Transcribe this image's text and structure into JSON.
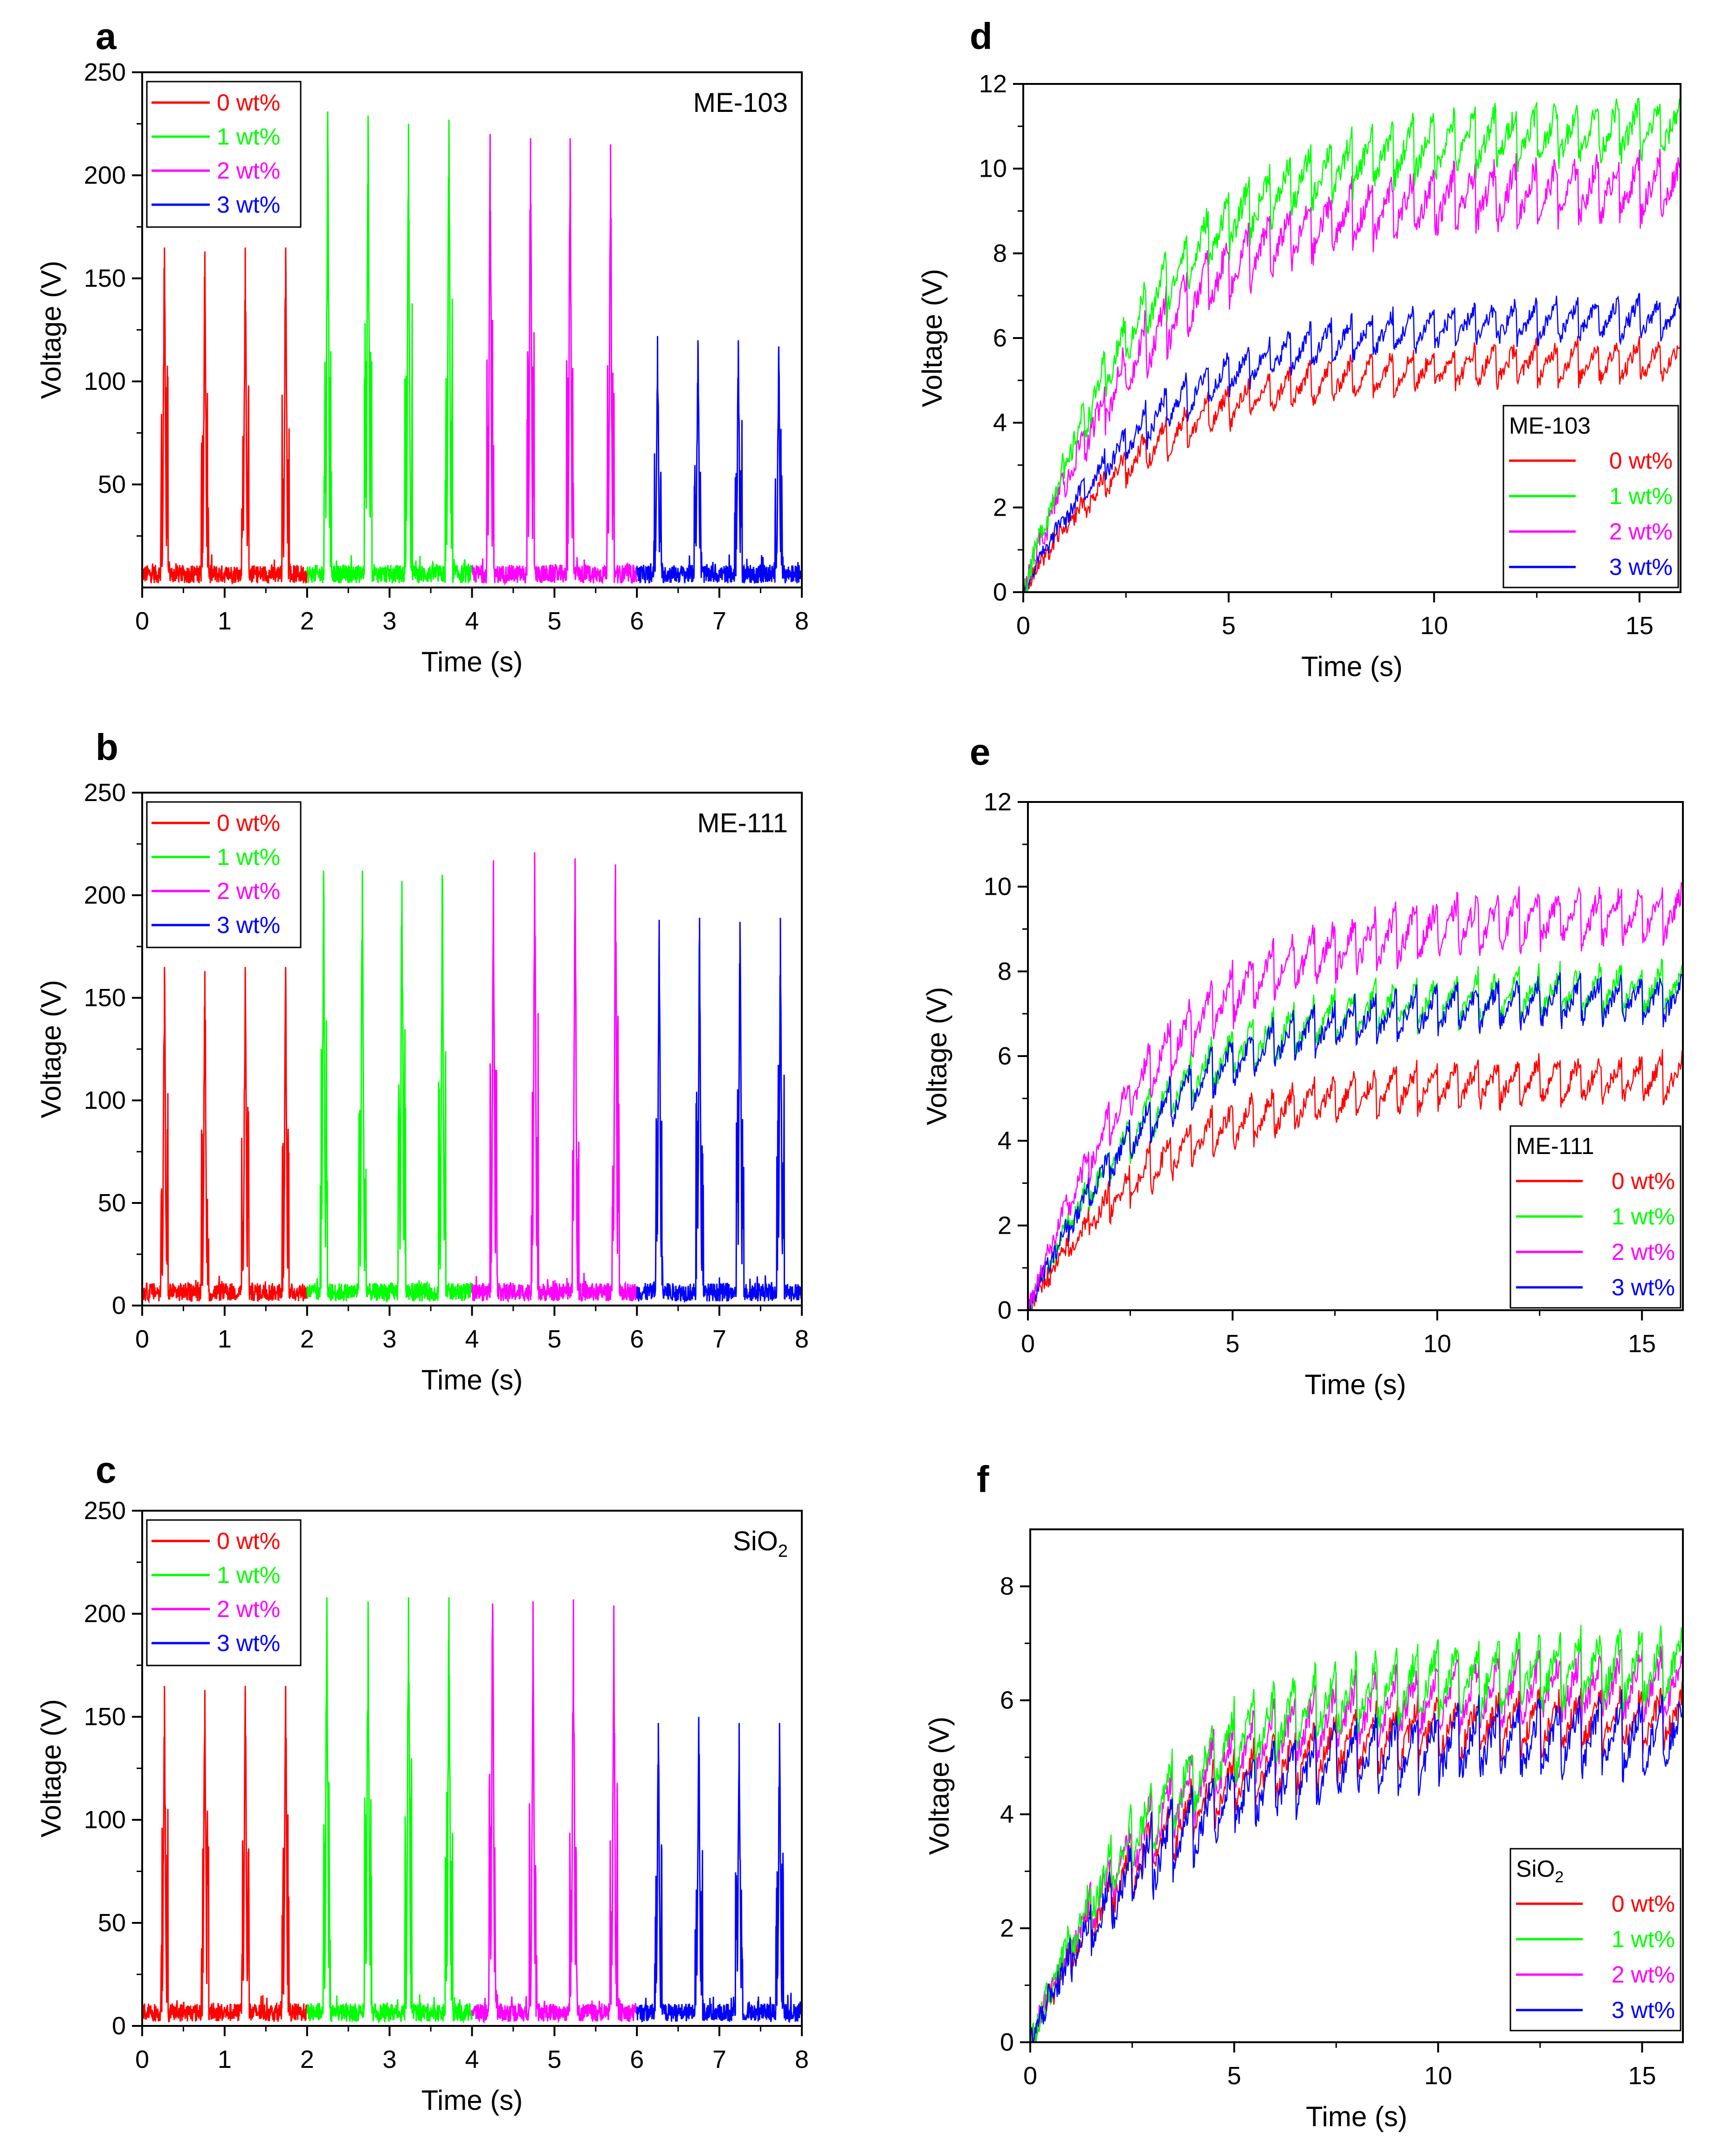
{
  "chart_data": [
    {
      "type": "line",
      "panel": "a",
      "annotation": "ME-103",
      "title": "",
      "xlabel": "Time (s)",
      "ylabel": "Voltage (V)",
      "xlim": [
        0,
        8
      ],
      "ylim": [
        0,
        250
      ],
      "xticks": [
        0,
        1,
        2,
        3,
        4,
        5,
        6,
        7,
        8
      ],
      "yticks": [
        50,
        100,
        150,
        200,
        250
      ],
      "legend": {
        "position": "top-left",
        "title": "",
        "entries": [
          "0 wt%",
          "1 wt%",
          "2 wt%",
          "3 wt%"
        ]
      },
      "series": [
        {
          "name": "0 wt%",
          "color": "#ff0000",
          "range": [
            0,
            2
          ],
          "peaks": [
            [
              0.27,
              165
            ],
            [
              0.76,
              163
            ],
            [
              1.25,
              165
            ],
            [
              1.74,
              165
            ]
          ]
        },
        {
          "name": "1 wt%",
          "color": "#00ff00",
          "range": [
            2,
            4
          ],
          "peaks": [
            [
              2.25,
              231
            ],
            [
              2.74,
              229
            ],
            [
              3.23,
              225
            ],
            [
              3.72,
              227
            ]
          ]
        },
        {
          "name": "2 wt%",
          "color": "#ff00ff",
          "range": [
            4,
            6
          ],
          "peaks": [
            [
              4.22,
              220
            ],
            [
              4.71,
              218
            ],
            [
              5.19,
              218
            ],
            [
              5.68,
              215
            ]
          ]
        },
        {
          "name": "3 wt%",
          "color": "#0000ff",
          "range": [
            6,
            8
          ],
          "peaks": [
            [
              6.25,
              122
            ],
            [
              6.74,
              120
            ],
            [
              7.23,
              120
            ],
            [
              7.72,
              117
            ]
          ]
        }
      ]
    },
    {
      "type": "line",
      "panel": "b",
      "annotation": "ME-111",
      "title": "",
      "xlabel": "Time (s)",
      "ylabel": "Voltage (V)",
      "xlim": [
        0,
        8
      ],
      "ylim": [
        0,
        250
      ],
      "xticks": [
        0,
        1,
        2,
        3,
        4,
        5,
        6,
        7,
        8
      ],
      "yticks": [
        0,
        50,
        100,
        150,
        200,
        250
      ],
      "legend": {
        "position": "top-left",
        "title": "",
        "entries": [
          "0 wt%",
          "1 wt%",
          "2 wt%",
          "3 wt%"
        ]
      },
      "series": [
        {
          "name": "0 wt%",
          "color": "#ff0000",
          "range": [
            0,
            2
          ],
          "peaks": [
            [
              0.27,
              165
            ],
            [
              0.76,
              163
            ],
            [
              1.25,
              165
            ],
            [
              1.74,
              165
            ]
          ]
        },
        {
          "name": "1 wt%",
          "color": "#00ff00",
          "range": [
            2,
            4
          ],
          "peaks": [
            [
              2.2,
              212
            ],
            [
              2.67,
              212
            ],
            [
              3.15,
              207
            ],
            [
              3.64,
              210
            ]
          ]
        },
        {
          "name": "2 wt%",
          "color": "#ff00ff",
          "range": [
            4,
            6
          ],
          "peaks": [
            [
              4.26,
              217
            ],
            [
              4.76,
              221
            ],
            [
              5.25,
              218
            ],
            [
              5.74,
              215
            ]
          ]
        },
        {
          "name": "3 wt%",
          "color": "#0000ff",
          "range": [
            6,
            8
          ],
          "peaks": [
            [
              6.27,
              188
            ],
            [
              6.76,
              189
            ],
            [
              7.25,
              187
            ],
            [
              7.74,
              189
            ]
          ]
        }
      ]
    },
    {
      "type": "line",
      "panel": "c",
      "annotation": "SiO2",
      "title": "",
      "xlabel": "Time (s)",
      "ylabel": "Voltage (V)",
      "xlim": [
        0,
        8
      ],
      "ylim": [
        0,
        250
      ],
      "xticks": [
        0,
        1,
        2,
        3,
        4,
        5,
        6,
        7,
        8
      ],
      "yticks": [
        0,
        50,
        100,
        150,
        200,
        250
      ],
      "legend": {
        "position": "top-left",
        "title": "",
        "entries": [
          "0 wt%",
          "1 wt%",
          "2 wt%",
          "3 wt%"
        ]
      },
      "series": [
        {
          "name": "0 wt%",
          "color": "#ff0000",
          "range": [
            0,
            2
          ],
          "peaks": [
            [
              0.27,
              165
            ],
            [
              0.76,
              163
            ],
            [
              1.25,
              165
            ],
            [
              1.74,
              165
            ]
          ]
        },
        {
          "name": "1 wt%",
          "color": "#00ff00",
          "range": [
            2,
            4
          ],
          "peaks": [
            [
              2.24,
              208
            ],
            [
              2.74,
              206
            ],
            [
              3.23,
              208
            ],
            [
              3.72,
              208
            ]
          ]
        },
        {
          "name": "2 wt%",
          "color": "#ff00ff",
          "range": [
            4,
            6
          ],
          "peaks": [
            [
              4.25,
              205
            ],
            [
              4.74,
              206
            ],
            [
              5.23,
              207
            ],
            [
              5.72,
              204
            ]
          ]
        },
        {
          "name": "3 wt%",
          "color": "#0000ff",
          "range": [
            6,
            8
          ],
          "peaks": [
            [
              6.26,
              147
            ],
            [
              6.75,
              150
            ],
            [
              7.24,
              147
            ],
            [
              7.73,
              147
            ]
          ]
        }
      ]
    },
    {
      "type": "line",
      "panel": "d",
      "title": "",
      "xlabel": "Time (s)",
      "ylabel": "Voltage (V)",
      "xlim": [
        0,
        16
      ],
      "ylim": [
        0,
        12
      ],
      "xticks": [
        0,
        5,
        10,
        15
      ],
      "yticks": [
        0,
        2,
        4,
        6,
        8,
        10,
        12
      ],
      "legend": {
        "position": "bottom-right",
        "title": "ME-103",
        "entries": [
          "0 wt%",
          "1 wt%",
          "2 wt%",
          "3 wt%"
        ]
      },
      "series": [
        {
          "name": "0 wt%",
          "color": "#ff0000",
          "plateau": 5.5,
          "ripple": 0.9
        },
        {
          "name": "3 wt%",
          "color": "#0000ff",
          "plateau": 6.5,
          "ripple": 0.9
        },
        {
          "name": "2 wt%",
          "color": "#ff00ff",
          "plateau": 9.6,
          "ripple": 1.4
        },
        {
          "name": "1 wt%",
          "color": "#00ff00",
          "plateau": 11.0,
          "ripple": 1.3
        }
      ]
    },
    {
      "type": "line",
      "panel": "e",
      "title": "",
      "xlabel": "Time (s)",
      "ylabel": "Voltage (V)",
      "xlim": [
        0,
        16
      ],
      "ylim": [
        0,
        12
      ],
      "xticks": [
        0,
        5,
        10,
        15
      ],
      "yticks": [
        0,
        2,
        4,
        6,
        8,
        10,
        12
      ],
      "legend": {
        "position": "bottom-right",
        "title": "ME-111",
        "entries": [
          "0 wt%",
          "1 wt%",
          "2 wt%",
          "3 wt%"
        ]
      },
      "series": [
        {
          "name": "0 wt%",
          "color": "#ff0000",
          "plateau": 5.5,
          "ripple": 1.0
        },
        {
          "name": "1 wt%",
          "color": "#00ff00",
          "plateau": 7.6,
          "ripple": 1.1
        },
        {
          "name": "3 wt%",
          "color": "#0000ff",
          "plateau": 7.4,
          "ripple": 1.0
        },
        {
          "name": "2 wt%",
          "color": "#ff00ff",
          "plateau": 9.4,
          "ripple": 1.2
        }
      ]
    },
    {
      "type": "line",
      "panel": "f",
      "title": "",
      "xlabel": "Time (s)",
      "ylabel": "Voltage (V)",
      "xlim": [
        0,
        16
      ],
      "ylim": [
        0,
        9
      ],
      "xticks": [
        0,
        5,
        10,
        15
      ],
      "yticks": [
        0,
        2,
        4,
        6,
        8
      ],
      "legend": {
        "position": "bottom-right",
        "title": "SiO2",
        "entries": [
          "0 wt%",
          "1 wt%",
          "2 wt%",
          "3 wt%"
        ]
      },
      "series": [
        {
          "name": "0 wt%",
          "color": "#ff0000",
          "plateau": 5.7,
          "ripple": 1.0
        },
        {
          "name": "2 wt%",
          "color": "#ff00ff",
          "plateau": 6.3,
          "ripple": 1.1
        },
        {
          "name": "1 wt%",
          "color": "#00ff00",
          "plateau": 6.6,
          "ripple": 1.2
        },
        {
          "name": "3 wt%",
          "color": "#0000ff",
          "plateau": 5.4,
          "ripple": 1.2
        }
      ]
    }
  ]
}
